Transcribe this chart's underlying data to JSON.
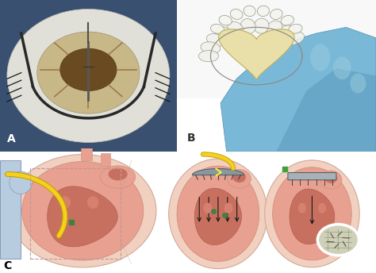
{
  "background_color": "#ffffff",
  "panel_A": {
    "label": "A",
    "bg_outer": "#3a5070",
    "foam_color": "#e8e8e0",
    "inner_color": "#c8b888",
    "deep_color": "#8a6838",
    "instrument_color": "#505050",
    "retractor_color": "#303030",
    "label_color": "#ffffff",
    "fontsize": 10,
    "fontweight": "bold"
  },
  "panel_B": {
    "label": "B",
    "bg_color": "#f0f0f0",
    "glove_color": "#7ab8d8",
    "glove_dark": "#5090b8",
    "device_center": "#e8e8c0",
    "device_frame": "#909090",
    "petal_color": "#f5f5f0",
    "label_color": "#333333",
    "fontsize": 10,
    "fontweight": "bold"
  },
  "panel_C": {
    "label": "C",
    "bg_color": "#ffffff",
    "peri_outer": "#f2d0c0",
    "peri_border": "#d0a090",
    "heart_muscle": "#e8a090",
    "heart_dark": "#c87870",
    "cavity_color": "#c07060",
    "blue_vessel": "#b8cce0",
    "catheter_yellow": "#f5d020",
    "catheter_dark": "#c0a000",
    "green_marker": "#408040",
    "device_color": "#909898",
    "arrow_color": "#202020",
    "inset_bg": "#d8d8c0",
    "label_color": "#000000",
    "fontsize": 10,
    "fontweight": "bold"
  }
}
